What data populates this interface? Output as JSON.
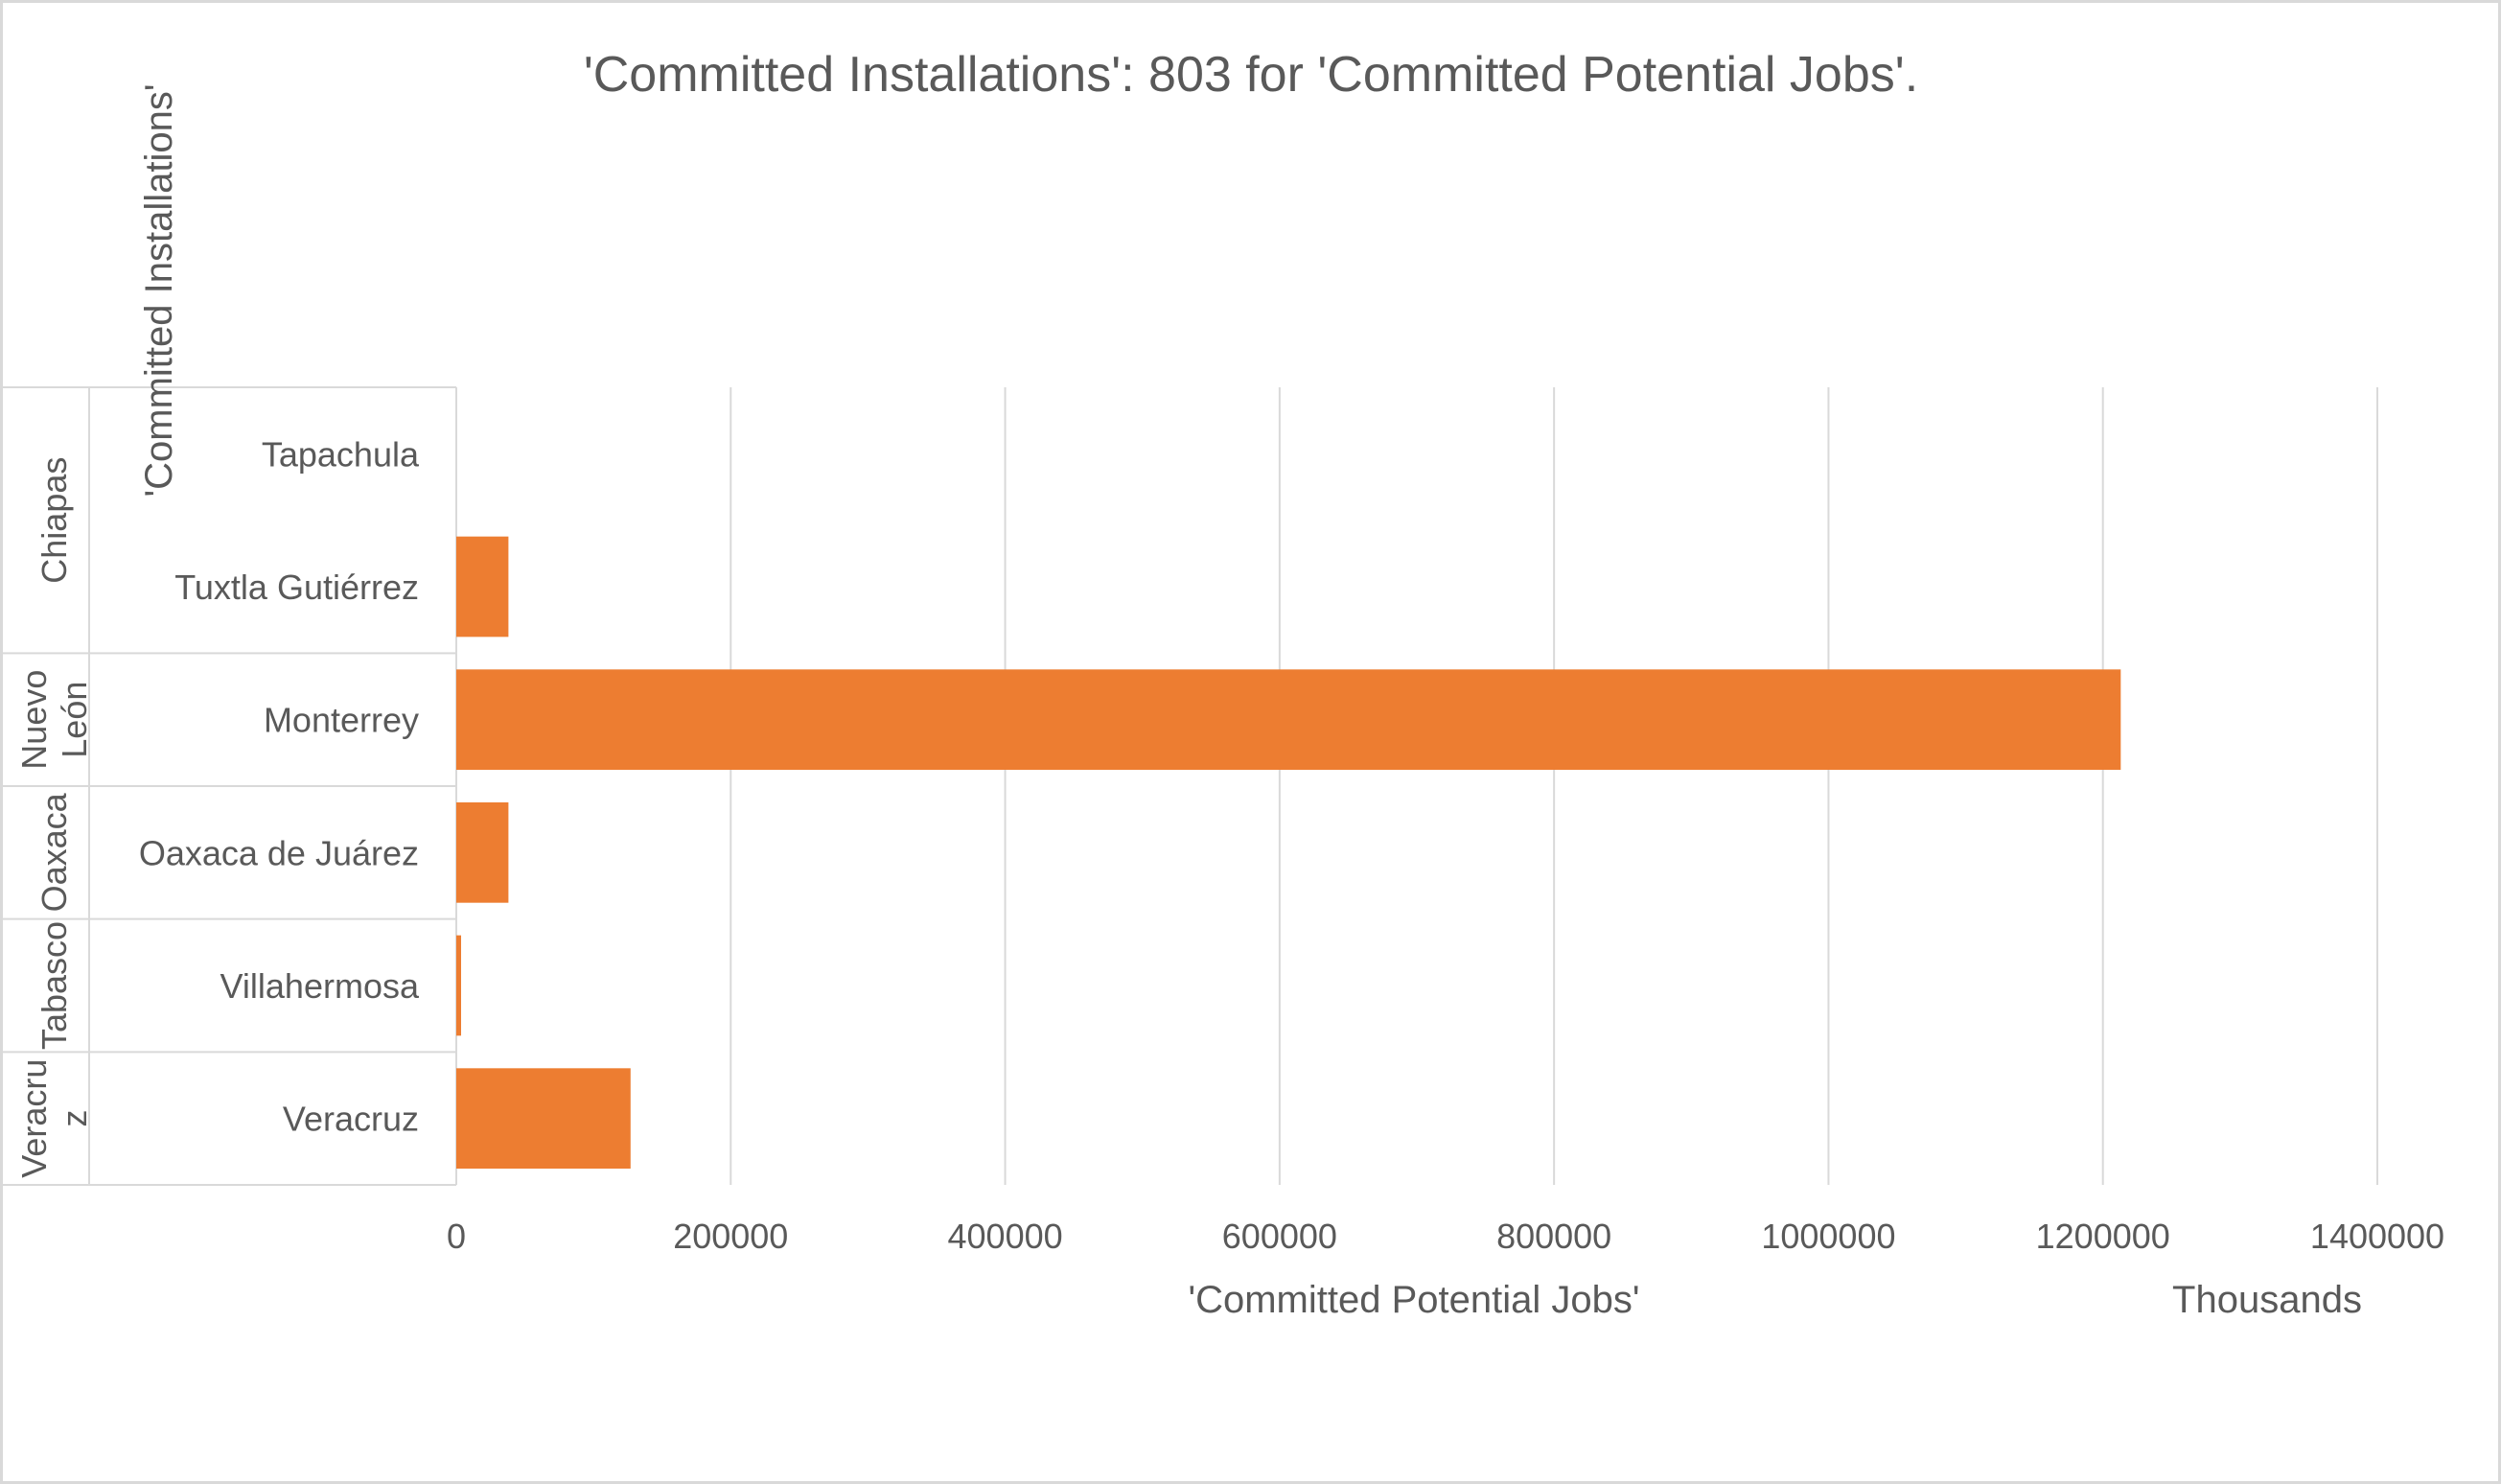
{
  "chart_data": {
    "type": "bar",
    "orientation": "horizontal",
    "title": "'Committed Installations': 803 for 'Committed Potential Jobs'.",
    "xlabel": "'Committed Potential Jobs'",
    "ylabel": "'Committed Installations'",
    "x_unit_label": "Thousands",
    "xlim": [
      0,
      1400000
    ],
    "x_ticks": [
      "0",
      "200000",
      "400000",
      "600000",
      "800000",
      "1000000",
      "1200000",
      "1400000"
    ],
    "grid": true,
    "legend": "none",
    "groups": [
      {
        "name": "Chiapas",
        "name_lines": [
          "Chiapas"
        ],
        "categories": [
          "Tapachula",
          "Tuxtla Gutiérrez"
        ]
      },
      {
        "name": "Nuevo León",
        "name_lines": [
          "Nuevo",
          "León"
        ],
        "categories": [
          "Monterrey"
        ]
      },
      {
        "name": "Oaxaca",
        "name_lines": [
          "Oaxaca"
        ],
        "categories": [
          "Oaxaca de Juárez"
        ]
      },
      {
        "name": "Tabasco",
        "name_lines": [
          "Tabasco"
        ],
        "categories": [
          "Villahermosa"
        ]
      },
      {
        "name": "Veracruz",
        "name_lines": [
          "Veracru",
          "z"
        ],
        "categories": [
          "Veracruz"
        ]
      }
    ],
    "categories": [
      "Tapachula",
      "Tuxtla Gutiérrez",
      "Monterrey",
      "Oaxaca de Juárez",
      "Villahermosa",
      "Veracruz"
    ],
    "values": [
      0,
      38000,
      1213000,
      38000,
      3500,
      127000
    ],
    "colors": {
      "bar": "#ed7d31",
      "grid": "#d9d9d9",
      "text": "#595959",
      "title": "#595959"
    }
  }
}
